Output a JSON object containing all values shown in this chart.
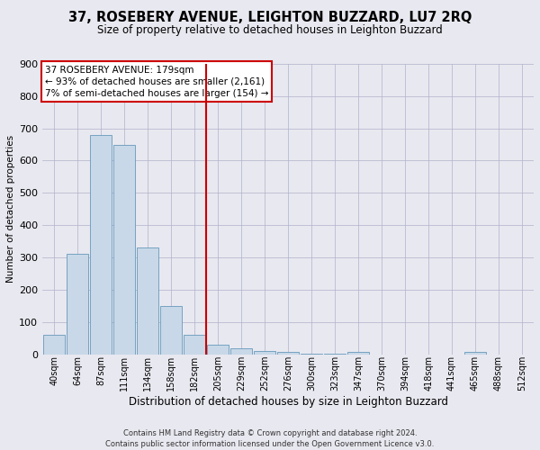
{
  "title": "37, ROSEBERY AVENUE, LEIGHTON BUZZARD, LU7 2RQ",
  "subtitle": "Size of property relative to detached houses in Leighton Buzzard",
  "xlabel": "Distribution of detached houses by size in Leighton Buzzard",
  "ylabel": "Number of detached properties",
  "footer": "Contains HM Land Registry data © Crown copyright and database right 2024.\nContains public sector information licensed under the Open Government Licence v3.0.",
  "bin_labels": [
    "40sqm",
    "64sqm",
    "87sqm",
    "111sqm",
    "134sqm",
    "158sqm",
    "182sqm",
    "205sqm",
    "229sqm",
    "252sqm",
    "276sqm",
    "300sqm",
    "323sqm",
    "347sqm",
    "370sqm",
    "394sqm",
    "418sqm",
    "441sqm",
    "465sqm",
    "488sqm",
    "512sqm"
  ],
  "bar_values": [
    60,
    310,
    680,
    650,
    330,
    150,
    60,
    30,
    18,
    11,
    8,
    3,
    3,
    8,
    0,
    0,
    0,
    0,
    8,
    0,
    0
  ],
  "bar_color": "#c8d8e8",
  "bar_edge_color": "#6699bb",
  "vline_x": 6.5,
  "vline_color": "#cc0000",
  "annotation_text": "37 ROSEBERY AVENUE: 179sqm\n← 93% of detached houses are smaller (2,161)\n7% of semi-detached houses are larger (154) →",
  "annotation_box_color": "#ffffff",
  "annotation_box_edge": "#cc0000",
  "ylim": [
    0,
    900
  ],
  "yticks": [
    0,
    100,
    200,
    300,
    400,
    500,
    600,
    700,
    800,
    900
  ],
  "grid_color": "#b0b0cc",
  "background_color": "#e8e8f0",
  "title_fontsize": 10.5,
  "subtitle_fontsize": 8.5,
  "ylabel_fontsize": 7.5,
  "xlabel_fontsize": 8.5,
  "footer_fontsize": 6.0,
  "annot_fontsize": 7.5,
  "ytick_fontsize": 8,
  "xtick_fontsize": 7
}
